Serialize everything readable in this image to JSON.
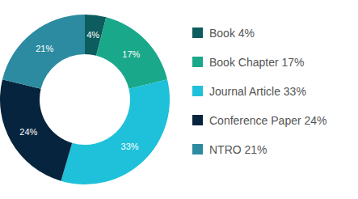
{
  "chart_data": {
    "type": "donut",
    "categories": [
      "Book 4%",
      "Book Chapter 17%",
      "Journal Article 33%",
      "Conference Paper 24%",
      "NTRO 21%"
    ],
    "values": [
      4,
      17,
      33,
      24,
      21
    ],
    "value_labels": [
      "4%",
      "17%",
      "33%",
      "24%",
      "21%"
    ],
    "colors": [
      "#0d5c5e",
      "#1aa88a",
      "#1ec1d9",
      "#06243d",
      "#2c8ba1"
    ],
    "data_labels": true,
    "legend": "right"
  }
}
